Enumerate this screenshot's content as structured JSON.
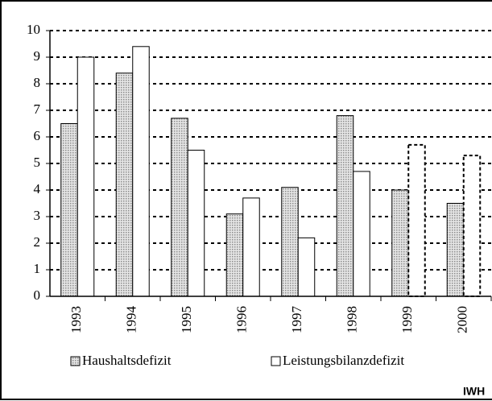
{
  "chart_data": {
    "type": "bar",
    "categories": [
      "1993",
      "1994",
      "1995",
      "1996",
      "1997",
      "1998",
      "1999",
      "2000"
    ],
    "series": [
      {
        "name": "Haushaltsdefizit",
        "color": "#8c8c8c",
        "pattern": "dots",
        "values": [
          6.5,
          8.4,
          6.7,
          3.1,
          4.1,
          6.8,
          4.0,
          3.5
        ]
      },
      {
        "name": "Leistungsbilanzdefizit",
        "color": "#ffffff",
        "values": [
          9.0,
          9.4,
          5.5,
          3.7,
          2.2,
          4.7,
          5.7,
          5.3
        ],
        "dashed": [
          false,
          false,
          false,
          false,
          false,
          false,
          true,
          true
        ]
      }
    ],
    "ylim": [
      0,
      10
    ],
    "yticks": [
      0,
      1,
      2,
      3,
      4,
      5,
      6,
      7,
      8,
      9,
      10
    ],
    "grid": true,
    "legend": "bottom",
    "annotation": "IWH"
  }
}
